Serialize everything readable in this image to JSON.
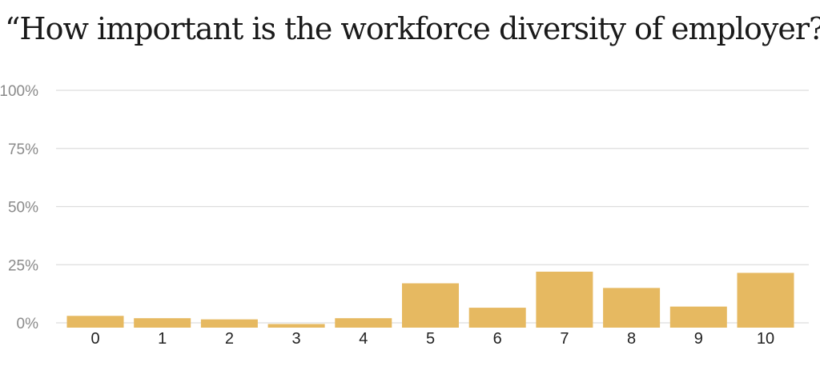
{
  "chart_data": {
    "type": "bar",
    "title": "“How important is the workforce diversity of employer?”",
    "xlabel": "",
    "ylabel": "",
    "categories": [
      "0",
      "1",
      "2",
      "3",
      "4",
      "5",
      "6",
      "7",
      "8",
      "9",
      "10"
    ],
    "values": [
      3,
      2,
      1.5,
      -0.5,
      2,
      17,
      6.5,
      22,
      15,
      7,
      21.5
    ],
    "ylim": [
      0,
      100
    ],
    "yticks": [
      "0%",
      "25%",
      "50%",
      "75%",
      "100%"
    ],
    "ytick_values": [
      0,
      25,
      50,
      75,
      100
    ],
    "grid": true,
    "legend": "none",
    "bar_color": "#e6b961",
    "grid_color": "#dddddd"
  }
}
